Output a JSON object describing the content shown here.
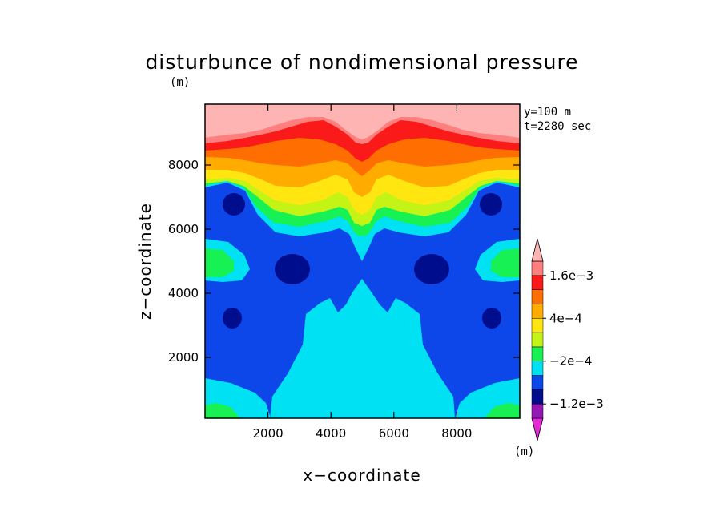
{
  "chart_data": {
    "type": "contour",
    "title": "disturbunce of nondimensional pressure",
    "xlabel": "x−coordinate",
    "ylabel": "z−coordinate",
    "x_unit": "(m)",
    "z_unit": "(m)",
    "cbar_unit": "(m)",
    "annotations": [
      "y=100 m",
      "t=2280 sec"
    ],
    "xlim": [
      0,
      10000
    ],
    "ylim": [
      100,
      9900
    ],
    "xticks": [
      2000,
      4000,
      6000,
      8000
    ],
    "yticks": [
      2000,
      4000,
      6000,
      8000
    ],
    "xtick_labels": [
      "2000",
      "4000",
      "6000",
      "8000"
    ],
    "ytick_labels": [
      "2000",
      "4000",
      "6000",
      "8000"
    ],
    "levels": [
      -0.0016,
      -0.0012,
      -0.0008,
      -0.0004,
      -0.0002,
      0,
      0.0002,
      0.0004,
      0.0006,
      0.0008,
      0.0012,
      0.0016
    ],
    "colorbar_labels": [
      "1.6e−3",
      "4e−4",
      "−2e−4",
      "−1.2e−3"
    ],
    "colors": [
      "#e62ad6",
      "#9419b4",
      "#000d8d",
      "#0d47ea",
      "#00e2f4",
      "#17f154",
      "#c4f416",
      "#ffe611",
      "#ffab00",
      "#ff6e00",
      "#fb1a1a",
      "#ff7f7f",
      "#ffb4b4"
    ],
    "field_description_points": [
      {
        "x": 1000,
        "z": 6800,
        "class": "-1.2e-3"
      },
      {
        "x": 9000,
        "z": 6800,
        "class": "-1.2e-3"
      },
      {
        "x": 2900,
        "z": 4800,
        "class": "-1.2e-3"
      },
      {
        "x": 7100,
        "z": 4800,
        "class": "-1.2e-3"
      },
      {
        "x": 1000,
        "z": 3200,
        "class": "-1.2e-3"
      },
      {
        "x": 9000,
        "z": 3200,
        "class": "-1.2e-3"
      },
      {
        "x": 5000,
        "z": 2500,
        "class": "-2e-4"
      },
      {
        "x": 5000,
        "z": 9500,
        "class": "1.6e-3"
      }
    ]
  }
}
